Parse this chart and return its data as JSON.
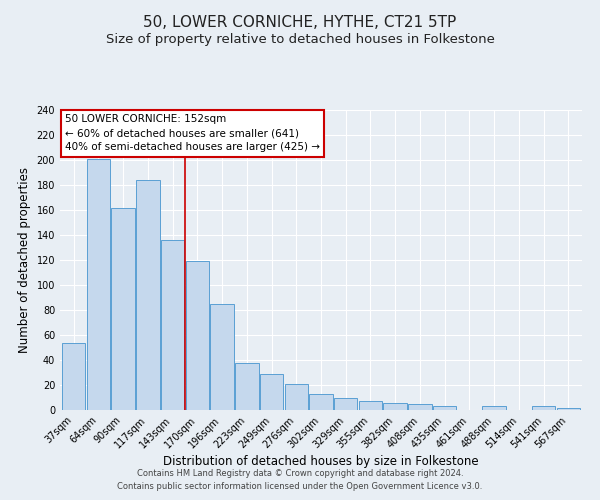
{
  "title": "50, LOWER CORNICHE, HYTHE, CT21 5TP",
  "subtitle": "Size of property relative to detached houses in Folkestone",
  "xlabel": "Distribution of detached houses by size in Folkestone",
  "ylabel": "Number of detached properties",
  "footnote1": "Contains HM Land Registry data © Crown copyright and database right 2024.",
  "footnote2": "Contains public sector information licensed under the Open Government Licence v3.0.",
  "categories": [
    "37sqm",
    "64sqm",
    "90sqm",
    "117sqm",
    "143sqm",
    "170sqm",
    "196sqm",
    "223sqm",
    "249sqm",
    "276sqm",
    "302sqm",
    "329sqm",
    "355sqm",
    "382sqm",
    "408sqm",
    "435sqm",
    "461sqm",
    "488sqm",
    "514sqm",
    "541sqm",
    "567sqm"
  ],
  "values": [
    54,
    201,
    162,
    184,
    136,
    119,
    85,
    38,
    29,
    21,
    13,
    10,
    7,
    6,
    5,
    3,
    0,
    3,
    0,
    3,
    2
  ],
  "bar_color": "#c5d8ed",
  "bar_edge_color": "#5a9fd4",
  "vline_x_index": 4,
  "vline_color": "#cc0000",
  "annotation_title": "50 LOWER CORNICHE: 152sqm",
  "annotation_line1": "← 60% of detached houses are smaller (641)",
  "annotation_line2": "40% of semi-detached houses are larger (425) →",
  "annotation_box_color": "#ffffff",
  "annotation_box_edge": "#cc0000",
  "ylim": [
    0,
    240
  ],
  "yticks": [
    0,
    20,
    40,
    60,
    80,
    100,
    120,
    140,
    160,
    180,
    200,
    220,
    240
  ],
  "background_color": "#e8eef4",
  "grid_color": "#ffffff",
  "title_fontsize": 11,
  "subtitle_fontsize": 9.5,
  "xlabel_fontsize": 8.5,
  "ylabel_fontsize": 8.5,
  "tick_fontsize": 7,
  "annot_fontsize": 7.5,
  "footnote_fontsize": 6
}
